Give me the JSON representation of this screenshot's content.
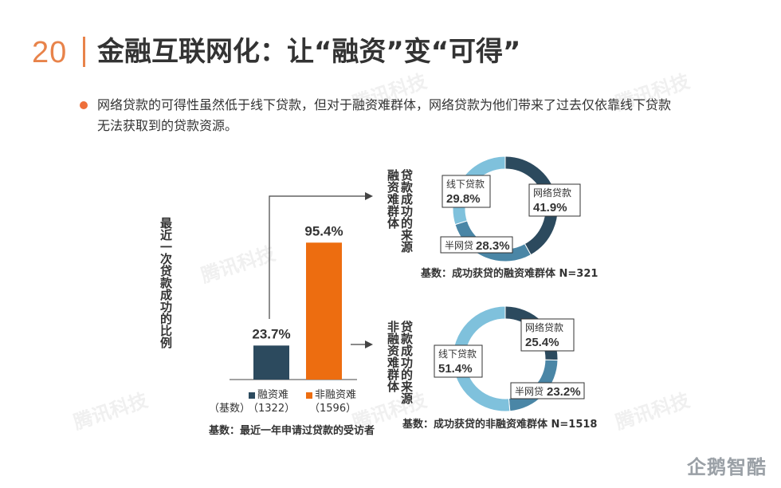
{
  "header": {
    "slide_number": "20",
    "title": "金融互联网化：让“融资”变“可得”"
  },
  "bullet": {
    "line1": "网络贷款的可得性虽然低于线下贷款，但对于融资难群体，网络贷款为他们带来了过去仅依靠线下贷款",
    "line2": "无法获取到的贷款资源。"
  },
  "watermark_text": "腾讯科技",
  "logo_text": "企鹅智酷",
  "colors": {
    "dark_blue": "#2c4a5e",
    "mid_blue": "#4a86a6",
    "light_blue": "#7fc1dc",
    "orange": "#ed6d10",
    "accent": "#e8834a"
  },
  "chart_data": [
    {
      "type": "bar",
      "ylabel": "最近一次贷款成功的比例",
      "categories": [
        "融资难",
        "非融资难"
      ],
      "values": [
        23.7,
        95.4
      ],
      "value_labels": [
        "23.7%",
        "95.4%"
      ],
      "base_label": "（基数）",
      "base_counts": [
        "（1322）",
        "（1596）"
      ],
      "ylim": [
        0,
        100
      ],
      "note": "基数：最近一年申请过贷款的受访者"
    },
    {
      "type": "pie",
      "title": "贷款成功的来源 融资难群体",
      "title_lines": [
        "贷款成功的来源",
        "融资难群体"
      ],
      "slices": [
        {
          "label": "网络贷款",
          "value": 41.9,
          "value_label": "41.9%"
        },
        {
          "label": "半网贷",
          "value": 28.3,
          "value_label": "28.3%"
        },
        {
          "label": "线下贷款",
          "value": 29.8,
          "value_label": "29.8%"
        }
      ],
      "note": "基数：成功获贷的融资难群体 N=321"
    },
    {
      "type": "pie",
      "title": "贷款成功的来源 非融资难群体",
      "title_lines": [
        "贷款成功的来源",
        "非融资难群体"
      ],
      "slices": [
        {
          "label": "网络贷款",
          "value": 25.4,
          "value_label": "25.4%"
        },
        {
          "label": "半网贷",
          "value": 23.2,
          "value_label": "23.2%"
        },
        {
          "label": "线下贷款",
          "value": 51.4,
          "value_label": "51.4%"
        }
      ],
      "note": "基数：成功获贷的非融资难群体 N=1518"
    }
  ]
}
